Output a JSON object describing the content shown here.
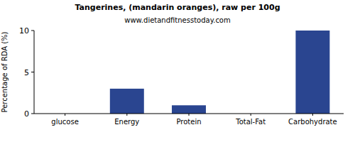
{
  "chart_data": {
    "type": "bar",
    "title": "Tangerines, (mandarin oranges), raw per 100g",
    "subtitle": "www.dietandfitnesstoday.com",
    "y_label": "Percentage of RDA (%)",
    "categories": [
      "glucose",
      "Energy",
      "Protein",
      "Total-Fat",
      "Carbohydrate"
    ],
    "values": [
      0,
      3,
      1,
      0,
      10
    ],
    "color": "#2a4590",
    "ylim": [
      0,
      10
    ],
    "yticks": [
      0,
      5,
      10
    ],
    "grid": false
  }
}
